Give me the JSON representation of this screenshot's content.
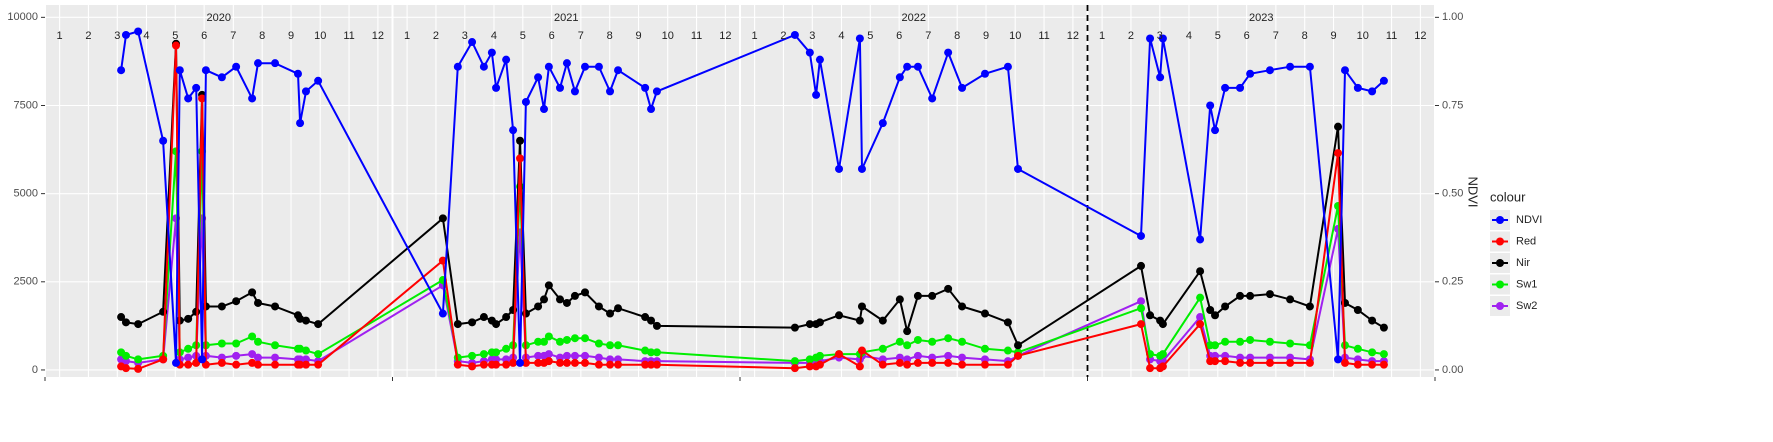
{
  "chart_data": {
    "type": "line",
    "y2_label": "NDVI",
    "legend_title": "colour",
    "legend_position": "right",
    "grid": true,
    "xlim": [
      2020,
      2024
    ],
    "ylim": [
      -200,
      10350
    ],
    "yticks": [
      0,
      2500,
      5000,
      7500,
      10000
    ],
    "y2lim": [
      -0.02,
      1.035
    ],
    "y2ticks": [
      {
        "value": 0,
        "label": "0.00"
      },
      {
        "value": 0.25,
        "label": "0.25"
      },
      {
        "value": 0.5,
        "label": "0.50"
      },
      {
        "value": 0.75,
        "label": "0.75"
      },
      {
        "value": 1,
        "label": "1.00"
      }
    ],
    "year_breaks": [
      2020,
      2021,
      2022,
      2023,
      2024
    ],
    "year_labels": [
      {
        "value": 2020.5,
        "label": "2020"
      },
      {
        "value": 2021.5,
        "label": "2021"
      },
      {
        "value": 2022.5,
        "label": "2022"
      },
      {
        "value": 2023.5,
        "label": "2023"
      }
    ],
    "xticks": [
      {
        "value": 2020.042,
        "label": "1"
      },
      {
        "value": 2020.125,
        "label": "2"
      },
      {
        "value": 2020.208,
        "label": "3"
      },
      {
        "value": 2020.292,
        "label": "4"
      },
      {
        "value": 2020.375,
        "label": "5"
      },
      {
        "value": 2020.458,
        "label": "6"
      },
      {
        "value": 2020.542,
        "label": "7"
      },
      {
        "value": 2020.625,
        "label": "8"
      },
      {
        "value": 2020.708,
        "label": "9"
      },
      {
        "value": 2020.792,
        "label": "10"
      },
      {
        "value": 2020.875,
        "label": "11"
      },
      {
        "value": 2020.958,
        "label": "12"
      },
      {
        "value": 2021.042,
        "label": "1"
      },
      {
        "value": 2021.125,
        "label": "2"
      },
      {
        "value": 2021.208,
        "label": "3"
      },
      {
        "value": 2021.292,
        "label": "4"
      },
      {
        "value": 2021.375,
        "label": "5"
      },
      {
        "value": 2021.458,
        "label": "6"
      },
      {
        "value": 2021.542,
        "label": "7"
      },
      {
        "value": 2021.625,
        "label": "8"
      },
      {
        "value": 2021.708,
        "label": "9"
      },
      {
        "value": 2021.792,
        "label": "10"
      },
      {
        "value": 2021.875,
        "label": "11"
      },
      {
        "value": 2021.958,
        "label": "12"
      },
      {
        "value": 2022.042,
        "label": "1"
      },
      {
        "value": 2022.125,
        "label": "2"
      },
      {
        "value": 2022.208,
        "label": "3"
      },
      {
        "value": 2022.292,
        "label": "4"
      },
      {
        "value": 2022.375,
        "label": "5"
      },
      {
        "value": 2022.458,
        "label": "6"
      },
      {
        "value": 2022.542,
        "label": "7"
      },
      {
        "value": 2022.625,
        "label": "8"
      },
      {
        "value": 2022.708,
        "label": "9"
      },
      {
        "value": 2022.792,
        "label": "10"
      },
      {
        "value": 2022.875,
        "label": "11"
      },
      {
        "value": 2022.958,
        "label": "12"
      },
      {
        "value": 2023.042,
        "label": "1"
      },
      {
        "value": 2023.125,
        "label": "2"
      },
      {
        "value": 2023.208,
        "label": "3"
      },
      {
        "value": 2023.292,
        "label": "4"
      },
      {
        "value": 2023.375,
        "label": "5"
      },
      {
        "value": 2023.458,
        "label": "6"
      },
      {
        "value": 2023.542,
        "label": "7"
      },
      {
        "value": 2023.625,
        "label": "8"
      },
      {
        "value": 2023.708,
        "label": "9"
      },
      {
        "value": 2023.792,
        "label": "10"
      },
      {
        "value": 2023.875,
        "label": "11"
      },
      {
        "value": 2023.958,
        "label": "12"
      }
    ],
    "vline": 2023,
    "x": [
      2020.219,
      2020.233,
      2020.268,
      2020.34,
      2020.377,
      2020.388,
      2020.412,
      2020.435,
      2020.452,
      2020.463,
      2020.509,
      2020.55,
      2020.596,
      2020.613,
      2020.662,
      2020.728,
      2020.734,
      2020.751,
      2020.786,
      2021.145,
      2021.188,
      2021.229,
      2021.263,
      2021.286,
      2021.298,
      2021.327,
      2021.347,
      2021.367,
      2021.384,
      2021.419,
      2021.436,
      2021.45,
      2021.482,
      2021.502,
      2021.525,
      2021.554,
      2021.594,
      2021.626,
      2021.649,
      2021.727,
      2021.744,
      2021.761,
      2022.158,
      2022.201,
      2022.219,
      2022.23,
      2022.285,
      2022.345,
      2022.351,
      2022.411,
      2022.46,
      2022.481,
      2022.512,
      2022.553,
      2022.599,
      2022.639,
      2022.705,
      2022.771,
      2022.8,
      2023.154,
      2023.18,
      2023.209,
      2023.217,
      2023.324,
      2023.353,
      2023.367,
      2023.396,
      2023.439,
      2023.468,
      2023.525,
      2023.583,
      2023.64,
      2023.721,
      2023.741,
      2023.778,
      2023.819,
      2023.853
    ],
    "series": [
      {
        "name": "NDVI",
        "color": "#0000ff",
        "axis": "y2",
        "values": [
          0.85,
          0.95,
          0.96,
          0.65,
          0.02,
          0.85,
          0.77,
          0.8,
          0.03,
          0.85,
          0.83,
          0.86,
          0.77,
          0.87,
          0.87,
          0.84,
          0.7,
          0.79,
          0.82,
          0.16,
          0.86,
          0.93,
          0.86,
          0.9,
          0.8,
          0.88,
          0.68,
          0.02,
          0.76,
          0.83,
          0.74,
          0.86,
          0.8,
          0.87,
          0.79,
          0.86,
          0.86,
          0.79,
          0.85,
          0.8,
          0.74,
          0.79,
          0.95,
          0.9,
          0.78,
          0.88,
          0.57,
          0.94,
          0.57,
          0.7,
          0.83,
          0.86,
          0.86,
          0.77,
          0.9,
          0.8,
          0.84,
          0.86,
          0.57,
          0.38,
          0.94,
          0.83,
          0.94,
          0.37,
          0.75,
          0.68,
          0.8,
          0.8,
          0.84,
          0.85,
          0.86,
          0.86,
          0.03,
          0.85,
          0.8,
          0.79,
          0.82
        ]
      },
      {
        "name": "Red",
        "color": "#ff0000",
        "values": [
          100,
          50,
          30,
          300,
          9200,
          150,
          150,
          200,
          7700,
          150,
          200,
          150,
          200,
          150,
          150,
          150,
          150,
          150,
          150,
          3100,
          150,
          100,
          150,
          150,
          150,
          150,
          200,
          6000,
          200,
          200,
          200,
          250,
          200,
          200,
          200,
          200,
          150,
          150,
          150,
          150,
          150,
          150,
          50,
          100,
          100,
          150,
          450,
          100,
          550,
          150,
          200,
          150,
          200,
          200,
          200,
          150,
          150,
          150,
          400,
          1300,
          50,
          50,
          100,
          1300,
          250,
          250,
          250,
          200,
          200,
          200,
          200,
          200,
          6150,
          200,
          150,
          150,
          150
        ]
      },
      {
        "name": "Nir",
        "color": "#000000",
        "values": [
          1500,
          1350,
          1300,
          1650,
          9250,
          1400,
          1450,
          1650,
          7800,
          1800,
          1800,
          1950,
          2200,
          1900,
          1800,
          1550,
          1450,
          1400,
          1300,
          4300,
          1300,
          1350,
          1500,
          1400,
          1300,
          1500,
          1700,
          6500,
          1600,
          1800,
          2000,
          2400,
          2000,
          1900,
          2100,
          2200,
          1800,
          1600,
          1750,
          1500,
          1400,
          1250,
          1200,
          1300,
          1300,
          1350,
          1550,
          1400,
          1800,
          1400,
          2000,
          1100,
          2100,
          2100,
          2300,
          1800,
          1600,
          1350,
          700,
          2950,
          1550,
          1400,
          1300,
          2800,
          1700,
          1550,
          1800,
          2100,
          2100,
          2150,
          2000,
          1800,
          6900,
          1900,
          1700,
          1400,
          1200
        ]
      },
      {
        "name": "Sw1",
        "color": "#00ee00",
        "values": [
          500,
          400,
          300,
          400,
          6200,
          500,
          600,
          700,
          6200,
          700,
          750,
          750,
          950,
          800,
          700,
          600,
          600,
          550,
          450,
          2550,
          350,
          400,
          450,
          500,
          500,
          600,
          700,
          5200,
          700,
          800,
          800,
          950,
          800,
          850,
          900,
          900,
          750,
          700,
          700,
          550,
          500,
          500,
          250,
          300,
          350,
          400,
          450,
          450,
          500,
          600,
          800,
          700,
          850,
          800,
          900,
          800,
          600,
          550,
          500,
          1750,
          450,
          400,
          450,
          2050,
          700,
          700,
          800,
          800,
          850,
          800,
          750,
          700,
          4650,
          700,
          600,
          500,
          450
        ]
      },
      {
        "name": "Sw2",
        "color": "#a020f0",
        "values": [
          300,
          250,
          200,
          300,
          4300,
          300,
          350,
          400,
          4300,
          400,
          350,
          400,
          450,
          350,
          350,
          300,
          300,
          300,
          250,
          2400,
          250,
          200,
          250,
          300,
          300,
          300,
          350,
          3900,
          350,
          400,
          400,
          450,
          350,
          400,
          400,
          400,
          350,
          300,
          300,
          250,
          250,
          250,
          200,
          200,
          250,
          250,
          350,
          300,
          400,
          300,
          350,
          300,
          400,
          350,
          400,
          350,
          300,
          250,
          400,
          1950,
          300,
          250,
          250,
          1500,
          400,
          400,
          400,
          350,
          350,
          350,
          350,
          300,
          4000,
          350,
          300,
          250,
          250
        ]
      }
    ]
  }
}
